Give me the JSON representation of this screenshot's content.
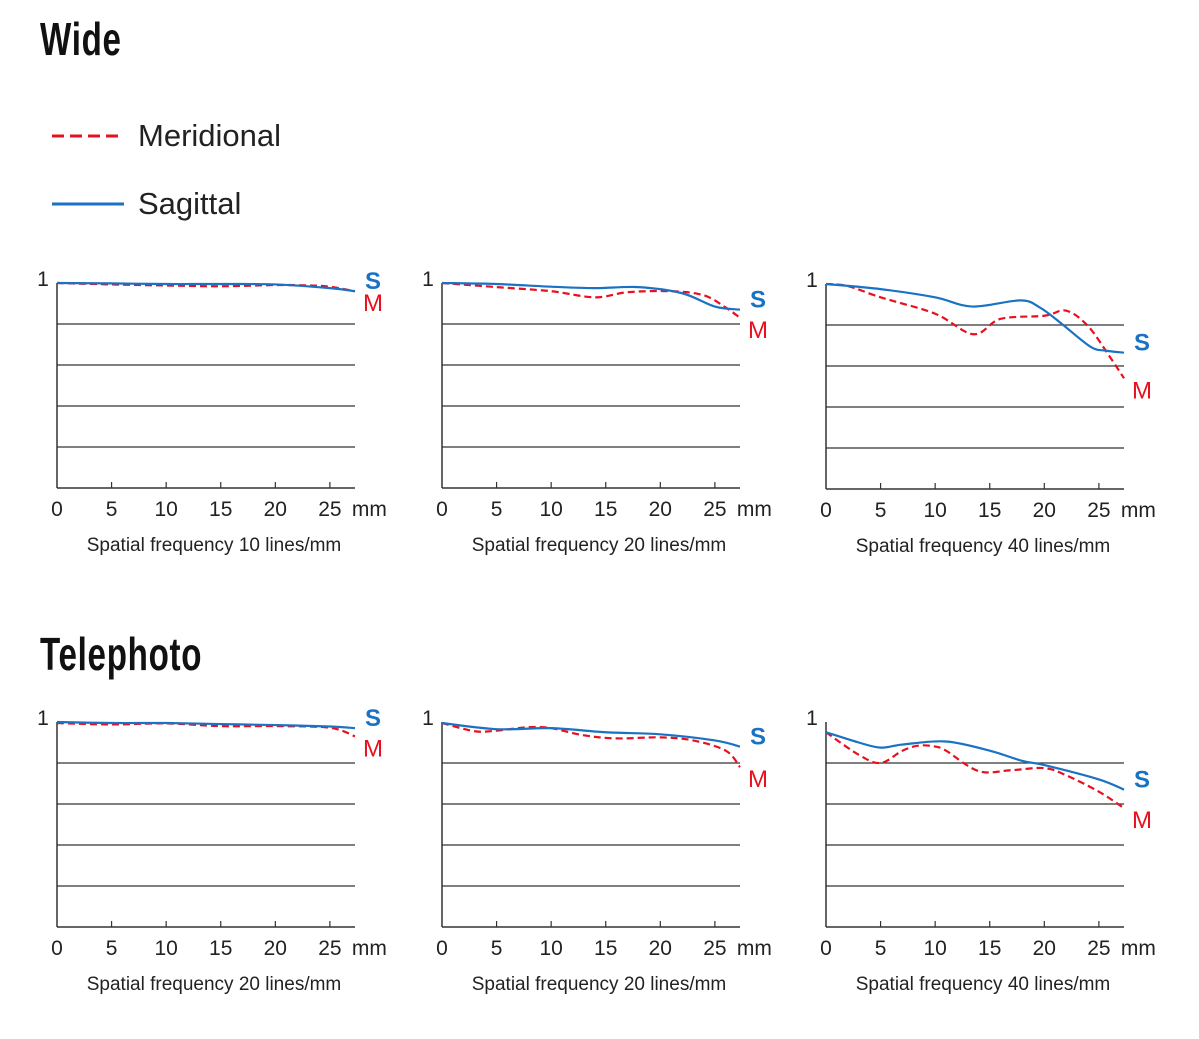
{
  "sections": [
    {
      "title": "Wide"
    },
    {
      "title": "Telephoto"
    }
  ],
  "legend": [
    {
      "label": "Meridional",
      "color": "#e8101e",
      "style": "dashed"
    },
    {
      "label": "Sagittal",
      "color": "#1a72c4",
      "style": "solid"
    }
  ],
  "chart_data": [
    {
      "type": "line",
      "section": "Wide",
      "title": "Spatial frequency 10 lines/mm",
      "xlabel": "mm",
      "xticks": [
        0,
        5,
        10,
        15,
        20,
        25
      ],
      "y_top_label": "1",
      "ylim": [
        0,
        1
      ],
      "xlim": [
        0,
        27.3
      ],
      "grid": true,
      "series": [
        {
          "name": "S",
          "x": [
            0,
            5,
            10,
            15,
            20,
            25,
            27.3
          ],
          "values": [
            1,
            0.998,
            0.995,
            0.995,
            0.993,
            0.975,
            0.96
          ]
        },
        {
          "name": "M",
          "x": [
            0,
            5,
            10,
            15,
            20,
            23,
            25,
            27.3
          ],
          "values": [
            1,
            0.993,
            0.988,
            0.984,
            0.99,
            0.988,
            0.982,
            0.96
          ]
        }
      ]
    },
    {
      "type": "line",
      "section": "Wide",
      "title": "Spatial frequency 20 lines/mm",
      "xlabel": "mm",
      "xticks": [
        0,
        5,
        10,
        15,
        20,
        25
      ],
      "y_top_label": "1",
      "ylim": [
        0,
        1
      ],
      "xlim": [
        0,
        27.3
      ],
      "grid": true,
      "series": [
        {
          "name": "S",
          "x": [
            0,
            5,
            10,
            14,
            18,
            22,
            25,
            27.3
          ],
          "values": [
            1,
            0.995,
            0.982,
            0.975,
            0.98,
            0.95,
            0.885,
            0.87
          ]
        },
        {
          "name": "M",
          "x": [
            0,
            5,
            10,
            14,
            17,
            21,
            24,
            26,
            27.3
          ],
          "values": [
            1,
            0.98,
            0.96,
            0.93,
            0.955,
            0.96,
            0.94,
            0.88,
            0.83
          ]
        }
      ]
    },
    {
      "type": "line",
      "section": "Wide",
      "title": "Spatial frequency 40 lines/mm",
      "xlabel": "mm",
      "xticks": [
        0,
        5,
        10,
        15,
        20,
        25
      ],
      "y_top_label": "1",
      "ylim": [
        0,
        1
      ],
      "xlim": [
        0,
        27.3
      ],
      "grid": true,
      "series": [
        {
          "name": "S",
          "x": [
            0,
            5,
            10,
            13.4,
            17.8,
            19.6,
            21.5,
            24.2,
            25.6,
            27.3
          ],
          "values": [
            1,
            0.975,
            0.935,
            0.89,
            0.92,
            0.885,
            0.81,
            0.695,
            0.675,
            0.665
          ]
        },
        {
          "name": "M",
          "x": [
            0,
            2,
            5,
            10,
            13.5,
            16,
            20,
            22,
            24,
            26,
            27.3
          ],
          "values": [
            1,
            0.99,
            0.935,
            0.855,
            0.755,
            0.83,
            0.845,
            0.87,
            0.795,
            0.645,
            0.54
          ]
        }
      ]
    },
    {
      "type": "line",
      "section": "Telephoto",
      "title": "Spatial frequency 20 lines/mm",
      "xlabel": "mm",
      "xticks": [
        0,
        5,
        10,
        15,
        20,
        25
      ],
      "y_top_label": "1",
      "ylim": [
        0,
        1
      ],
      "xlim": [
        0,
        27.3
      ],
      "grid": true,
      "series": [
        {
          "name": "S",
          "x": [
            0,
            5,
            10,
            15,
            20,
            25,
            27.3
          ],
          "values": [
            1,
            0.995,
            0.995,
            0.99,
            0.985,
            0.978,
            0.97
          ]
        },
        {
          "name": "M",
          "x": [
            0,
            5,
            10,
            15,
            20,
            25,
            27.3
          ],
          "values": [
            0.995,
            0.988,
            0.993,
            0.98,
            0.98,
            0.972,
            0.93
          ]
        }
      ]
    },
    {
      "type": "line",
      "section": "Telephoto",
      "title": "Spatial frequency 20 lines/mm",
      "xlabel": "mm",
      "xticks": [
        0,
        5,
        10,
        15,
        20,
        25
      ],
      "y_top_label": "1",
      "ylim": [
        0,
        1
      ],
      "xlim": [
        0,
        27.3
      ],
      "grid": true,
      "series": [
        {
          "name": "S",
          "x": [
            0,
            5,
            10,
            15,
            20,
            25,
            27.3
          ],
          "values": [
            0.995,
            0.965,
            0.97,
            0.95,
            0.94,
            0.91,
            0.88
          ]
        },
        {
          "name": "M",
          "x": [
            0,
            3,
            5,
            8,
            10,
            13,
            16,
            20,
            23,
            26,
            27.3
          ],
          "values": [
            0.995,
            0.955,
            0.958,
            0.975,
            0.97,
            0.935,
            0.92,
            0.925,
            0.91,
            0.86,
            0.78
          ]
        }
      ]
    },
    {
      "type": "line",
      "section": "Telephoto",
      "title": "Spatial frequency 40 lines/mm",
      "xlabel": "mm",
      "xticks": [
        0,
        5,
        10,
        15,
        20,
        25
      ],
      "y_top_label": "1",
      "ylim": [
        0,
        1
      ],
      "xlim": [
        0,
        27.3
      ],
      "grid": true,
      "series": [
        {
          "name": "S",
          "x": [
            0,
            3,
            5,
            7,
            11,
            15,
            18,
            20,
            25,
            27.3
          ],
          "values": [
            0.95,
            0.9,
            0.875,
            0.89,
            0.905,
            0.86,
            0.81,
            0.79,
            0.72,
            0.67
          ]
        },
        {
          "name": "M",
          "x": [
            0,
            3,
            5,
            7,
            8.5,
            10,
            11,
            14,
            17,
            20,
            22,
            25,
            27.3
          ],
          "values": [
            0.95,
            0.84,
            0.8,
            0.86,
            0.885,
            0.88,
            0.86,
            0.76,
            0.765,
            0.775,
            0.74,
            0.66,
            0.58
          ]
        }
      ]
    }
  ]
}
